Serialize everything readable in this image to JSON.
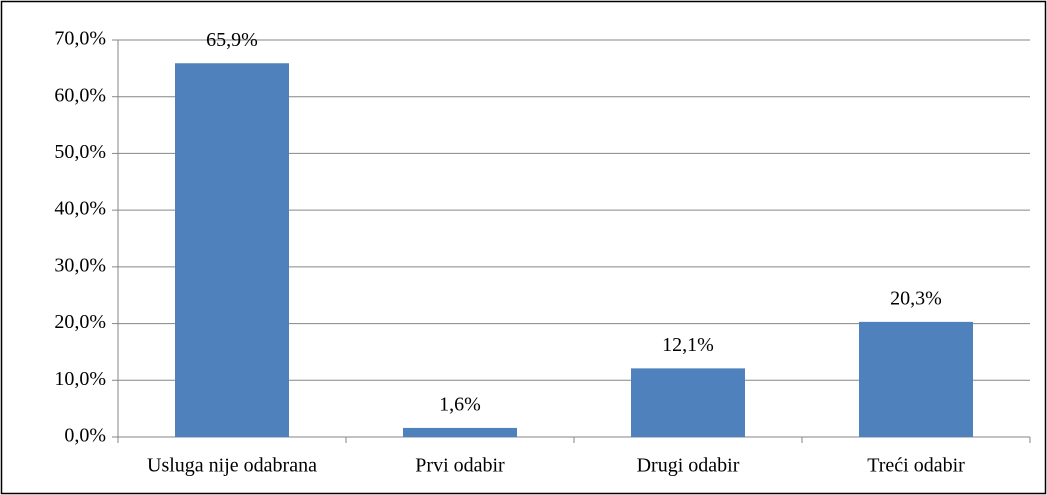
{
  "chart_data": {
    "type": "bar",
    "categories": [
      "Usluga nije odabrana",
      "Prvi odabir",
      "Drugi odabir",
      "Treći odabir"
    ],
    "values": [
      65.9,
      1.6,
      12.1,
      20.3
    ],
    "value_labels": [
      "65,9%",
      "1,6%",
      "12,1%",
      "20,3%"
    ],
    "color": "#4f81bd",
    "ylim": [
      0,
      70
    ],
    "yticks": [
      {
        "value": 0,
        "label": "0,0%"
      },
      {
        "value": 10,
        "label": "10,0%"
      },
      {
        "value": 20,
        "label": "20,0%"
      },
      {
        "value": 30,
        "label": "30,0%"
      },
      {
        "value": 40,
        "label": "40,0%"
      },
      {
        "value": 50,
        "label": "50,0%"
      },
      {
        "value": 60,
        "label": "60,0%"
      },
      {
        "value": 70,
        "label": "70,0%"
      }
    ],
    "grid": true
  }
}
